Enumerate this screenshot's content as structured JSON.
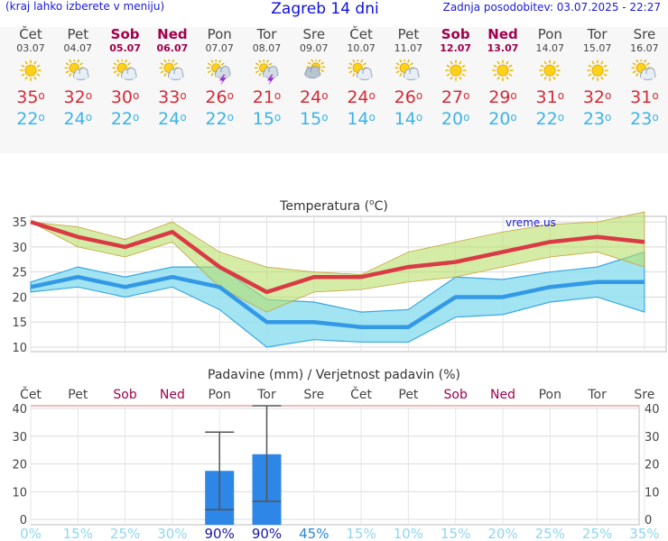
{
  "header": {
    "hint": "(kraj lahko izberete v meniju)",
    "title": "Zagreb 14 dni",
    "updated": "Zadnja posodobitev: 03.07.2025 - 22:27"
  },
  "days": [
    {
      "name": "Čet",
      "date": "03.07",
      "weekend": false,
      "icon": "sun-icon",
      "max": "35",
      "min": "22"
    },
    {
      "name": "Pet",
      "date": "04.07",
      "weekend": false,
      "icon": "sun-cloud-icon",
      "max": "32",
      "min": "24"
    },
    {
      "name": "Sob",
      "date": "05.07",
      "weekend": true,
      "icon": "sun-cloud-icon",
      "max": "30",
      "min": "22"
    },
    {
      "name": "Ned",
      "date": "06.07",
      "weekend": true,
      "icon": "sun-cloud-icon",
      "max": "33",
      "min": "24"
    },
    {
      "name": "Pon",
      "date": "07.07",
      "weekend": false,
      "icon": "storm-icon",
      "max": "26",
      "min": "22"
    },
    {
      "name": "Tor",
      "date": "08.07",
      "weekend": false,
      "icon": "storm-icon",
      "max": "21",
      "min": "15"
    },
    {
      "name": "Sre",
      "date": "09.07",
      "weekend": false,
      "icon": "cloud-sun-icon",
      "max": "24",
      "min": "15"
    },
    {
      "name": "Čet",
      "date": "10.07",
      "weekend": false,
      "icon": "sun-cloud-icon",
      "max": "24",
      "min": "14"
    },
    {
      "name": "Pet",
      "date": "11.07",
      "weekend": false,
      "icon": "sun-cloud-icon",
      "max": "26",
      "min": "14"
    },
    {
      "name": "Sob",
      "date": "12.07",
      "weekend": true,
      "icon": "sun-icon",
      "max": "27",
      "min": "20"
    },
    {
      "name": "Ned",
      "date": "13.07",
      "weekend": true,
      "icon": "sun-icon",
      "max": "29",
      "min": "20"
    },
    {
      "name": "Pon",
      "date": "14.07",
      "weekend": false,
      "icon": "sun-icon",
      "max": "31",
      "min": "22"
    },
    {
      "name": "Tor",
      "date": "15.07",
      "weekend": false,
      "icon": "sun-icon",
      "max": "32",
      "min": "23"
    },
    {
      "name": "Sre",
      "date": "16.07",
      "weekend": false,
      "icon": "sun-cloud-icon",
      "max": "31",
      "min": "23"
    }
  ],
  "degree_symbol": "o",
  "colors": {
    "max": "#d42b38",
    "min": "#3cb4e6",
    "weekend": "#a0004b",
    "bar": "#2e86e6",
    "prob_high": "#1a1a9e",
    "prob_low": "#8fd6ef"
  },
  "chart_data": [
    {
      "type": "line",
      "title": "Temperatura (oC)",
      "title_text": "Temperatura (",
      "title_unit": "C)",
      "watermark": "vreme.us",
      "ylim": [
        10,
        37
      ],
      "yticks": [
        "35",
        "30",
        "25",
        "20",
        "15",
        "10"
      ],
      "grid": true,
      "series": [
        {
          "key": "max",
          "values": [
            35,
            32,
            30,
            33,
            26,
            21,
            24,
            24,
            26,
            27,
            29,
            31,
            32,
            31
          ]
        },
        {
          "key": "max_band_high",
          "values": [
            35,
            34,
            31.5,
            35,
            29,
            26,
            25,
            24.5,
            29,
            31,
            33,
            34.5,
            35,
            37
          ]
        },
        {
          "key": "max_band_low",
          "values": [
            35,
            30,
            28,
            31,
            22,
            17,
            21,
            21.5,
            23,
            24,
            26,
            28,
            29,
            26
          ]
        },
        {
          "key": "min",
          "values": [
            22,
            24,
            22,
            24,
            22,
            15,
            15,
            14,
            14,
            20,
            20,
            22,
            23,
            23
          ]
        },
        {
          "key": "min_band_high",
          "values": [
            23,
            26,
            24,
            26,
            26,
            19.5,
            19,
            17,
            17.5,
            24,
            23.5,
            25,
            26,
            29
          ]
        },
        {
          "key": "min_band_low",
          "values": [
            21,
            22,
            20,
            22,
            17.5,
            10,
            11.5,
            11,
            11,
            16,
            16.5,
            19,
            20,
            17
          ]
        }
      ]
    },
    {
      "type": "bar",
      "title": "Padavine (mm) / Verjetnost padavin (%)",
      "categories": [
        "Čet",
        "Pet",
        "Sob",
        "Ned",
        "Pon",
        "Tor",
        "Sre",
        "Čet",
        "Pet",
        "Sob",
        "Ned",
        "Pon",
        "Tor",
        "Sre"
      ],
      "weekend": [
        false,
        false,
        true,
        true,
        false,
        false,
        false,
        false,
        false,
        true,
        true,
        false,
        false,
        false
      ],
      "values": [
        0,
        0,
        0,
        0,
        17.5,
        23.5,
        0,
        0,
        0,
        0,
        0,
        0,
        0,
        0
      ],
      "range_low": [
        null,
        null,
        null,
        null,
        3.5,
        6.5,
        null,
        null,
        null,
        null,
        null,
        null,
        null,
        null
      ],
      "range_high": [
        null,
        null,
        null,
        null,
        31.5,
        41,
        null,
        null,
        null,
        null,
        null,
        null,
        null,
        null
      ],
      "ylim": [
        0,
        41
      ],
      "yticks": [
        "40",
        "30",
        "20",
        "10",
        "0"
      ],
      "probabilities": [
        "0%",
        "15%",
        "25%",
        "30%",
        "90%",
        "90%",
        "45%",
        "15%",
        "10%",
        "15%",
        "20%",
        "25%",
        "25%",
        "35%"
      ]
    }
  ]
}
